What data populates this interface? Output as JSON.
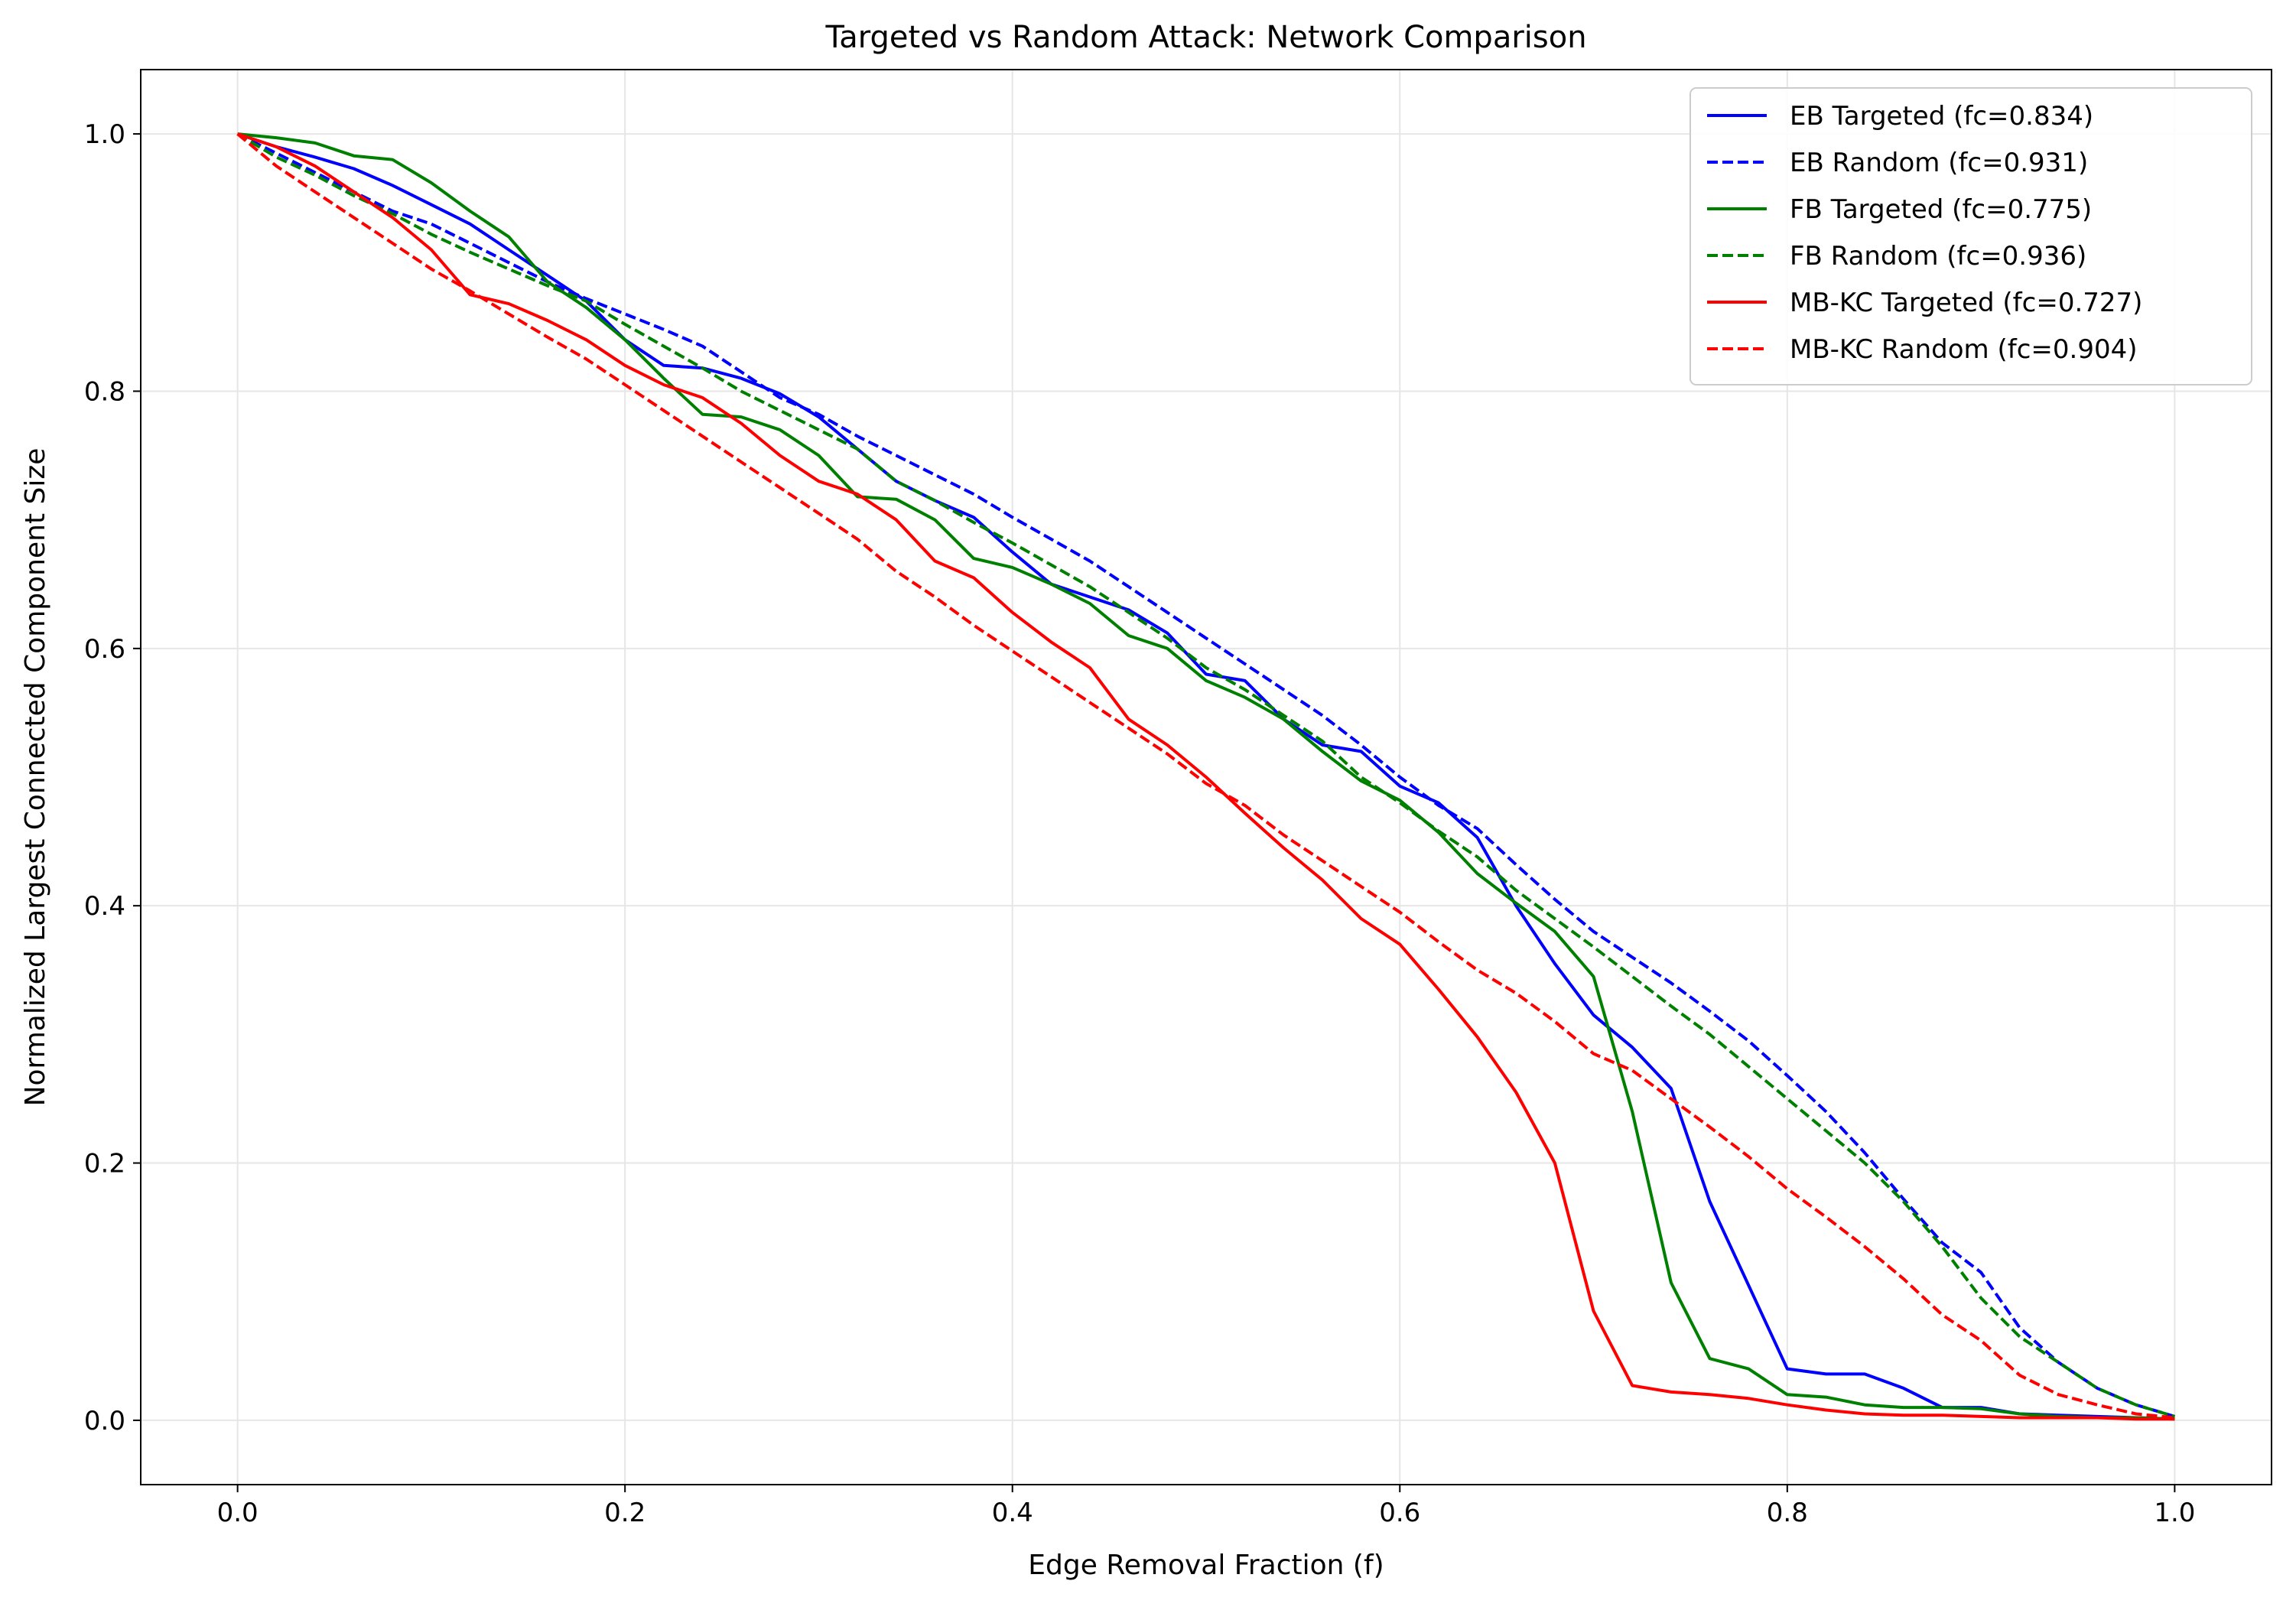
{
  "chart_data": {
    "type": "line",
    "title": "Targeted vs Random Attack: Network Comparison",
    "xlabel": "Edge Removal Fraction (f)",
    "ylabel": "Normalized Largest Connected Component Size",
    "xlim": [
      -0.05,
      1.05
    ],
    "ylim": [
      -0.05,
      1.05
    ],
    "xticks": [
      0.0,
      0.2,
      0.4,
      0.6,
      0.8,
      1.0
    ],
    "yticks": [
      0.0,
      0.2,
      0.4,
      0.6,
      0.8,
      1.0
    ],
    "xtick_labels": [
      "0.0",
      "0.2",
      "0.4",
      "0.6",
      "0.8",
      "1.0"
    ],
    "ytick_labels": [
      "0.0",
      "0.2",
      "0.4",
      "0.6",
      "0.8",
      "1.0"
    ],
    "grid": true,
    "legend_position": "top-right",
    "series": [
      {
        "name": "EB Targeted (fc=0.834)",
        "color": "#0000ff",
        "style": "solid",
        "x": [
          0.0,
          0.02,
          0.04,
          0.06,
          0.08,
          0.1,
          0.12,
          0.14,
          0.16,
          0.18,
          0.2,
          0.22,
          0.24,
          0.26,
          0.28,
          0.3,
          0.32,
          0.34,
          0.36,
          0.38,
          0.4,
          0.42,
          0.44,
          0.46,
          0.48,
          0.5,
          0.52,
          0.54,
          0.56,
          0.58,
          0.6,
          0.62,
          0.64,
          0.66,
          0.68,
          0.7,
          0.72,
          0.74,
          0.76,
          0.78,
          0.8,
          0.82,
          0.84,
          0.86,
          0.88,
          0.9,
          0.92,
          0.94,
          0.96,
          0.98,
          1.0
        ],
        "y": [
          1.0,
          0.99,
          0.982,
          0.973,
          0.96,
          0.945,
          0.93,
          0.91,
          0.89,
          0.87,
          0.84,
          0.82,
          0.818,
          0.81,
          0.798,
          0.78,
          0.755,
          0.73,
          0.715,
          0.702,
          0.675,
          0.65,
          0.64,
          0.63,
          0.612,
          0.58,
          0.575,
          0.545,
          0.525,
          0.52,
          0.493,
          0.48,
          0.453,
          0.4,
          0.355,
          0.315,
          0.29,
          0.258,
          0.17,
          0.105,
          0.04,
          0.036,
          0.036,
          0.025,
          0.01,
          0.01,
          0.005,
          0.004,
          0.003,
          0.002,
          0.001
        ]
      },
      {
        "name": "EB Random (fc=0.931)",
        "color": "#0000ff",
        "style": "dashed",
        "x": [
          0.0,
          0.02,
          0.04,
          0.06,
          0.08,
          0.1,
          0.12,
          0.14,
          0.16,
          0.18,
          0.2,
          0.22,
          0.24,
          0.26,
          0.28,
          0.3,
          0.32,
          0.34,
          0.36,
          0.38,
          0.4,
          0.42,
          0.44,
          0.46,
          0.48,
          0.5,
          0.52,
          0.54,
          0.56,
          0.58,
          0.6,
          0.62,
          0.64,
          0.66,
          0.68,
          0.7,
          0.72,
          0.74,
          0.76,
          0.78,
          0.8,
          0.82,
          0.84,
          0.86,
          0.88,
          0.9,
          0.92,
          0.94,
          0.96,
          0.98,
          1.0
        ],
        "y": [
          1.0,
          0.985,
          0.97,
          0.955,
          0.94,
          0.93,
          0.915,
          0.9,
          0.885,
          0.872,
          0.86,
          0.848,
          0.835,
          0.815,
          0.795,
          0.782,
          0.765,
          0.75,
          0.735,
          0.72,
          0.702,
          0.685,
          0.668,
          0.648,
          0.628,
          0.608,
          0.588,
          0.568,
          0.548,
          0.525,
          0.5,
          0.478,
          0.46,
          0.432,
          0.405,
          0.38,
          0.36,
          0.34,
          0.318,
          0.295,
          0.268,
          0.24,
          0.208,
          0.172,
          0.138,
          0.115,
          0.072,
          0.045,
          0.025,
          0.012,
          0.003
        ]
      },
      {
        "name": "FB Targeted (fc=0.775)",
        "color": "#008000",
        "style": "solid",
        "x": [
          0.0,
          0.02,
          0.04,
          0.06,
          0.08,
          0.1,
          0.12,
          0.14,
          0.16,
          0.18,
          0.2,
          0.22,
          0.24,
          0.26,
          0.28,
          0.3,
          0.32,
          0.34,
          0.36,
          0.38,
          0.4,
          0.42,
          0.44,
          0.46,
          0.48,
          0.5,
          0.52,
          0.54,
          0.56,
          0.58,
          0.6,
          0.62,
          0.64,
          0.66,
          0.68,
          0.7,
          0.72,
          0.74,
          0.76,
          0.78,
          0.8,
          0.82,
          0.84,
          0.86,
          0.88,
          0.9,
          0.92,
          0.94,
          0.96,
          0.98,
          1.0
        ],
        "y": [
          1.0,
          0.997,
          0.993,
          0.983,
          0.98,
          0.962,
          0.94,
          0.92,
          0.885,
          0.865,
          0.84,
          0.81,
          0.782,
          0.78,
          0.77,
          0.75,
          0.718,
          0.716,
          0.7,
          0.67,
          0.663,
          0.65,
          0.635,
          0.61,
          0.6,
          0.575,
          0.562,
          0.545,
          0.52,
          0.497,
          0.482,
          0.457,
          0.425,
          0.402,
          0.38,
          0.345,
          0.24,
          0.107,
          0.048,
          0.04,
          0.02,
          0.018,
          0.012,
          0.01,
          0.01,
          0.009,
          0.005,
          0.003,
          0.002,
          0.002,
          0.001
        ]
      },
      {
        "name": "FB Random (fc=0.936)",
        "color": "#008000",
        "style": "dashed",
        "x": [
          0.0,
          0.02,
          0.04,
          0.06,
          0.08,
          0.1,
          0.12,
          0.14,
          0.16,
          0.18,
          0.2,
          0.22,
          0.24,
          0.26,
          0.28,
          0.3,
          0.32,
          0.34,
          0.36,
          0.38,
          0.4,
          0.42,
          0.44,
          0.46,
          0.48,
          0.5,
          0.52,
          0.54,
          0.56,
          0.58,
          0.6,
          0.62,
          0.64,
          0.66,
          0.68,
          0.7,
          0.72,
          0.74,
          0.76,
          0.78,
          0.8,
          0.82,
          0.84,
          0.86,
          0.88,
          0.9,
          0.92,
          0.94,
          0.96,
          0.98,
          1.0
        ],
        "y": [
          1.0,
          0.982,
          0.968,
          0.952,
          0.938,
          0.922,
          0.908,
          0.895,
          0.882,
          0.87,
          0.852,
          0.835,
          0.818,
          0.8,
          0.785,
          0.77,
          0.755,
          0.73,
          0.715,
          0.698,
          0.682,
          0.665,
          0.648,
          0.628,
          0.608,
          0.585,
          0.568,
          0.548,
          0.528,
          0.5,
          0.48,
          0.458,
          0.438,
          0.412,
          0.39,
          0.368,
          0.345,
          0.322,
          0.3,
          0.275,
          0.25,
          0.225,
          0.2,
          0.17,
          0.135,
          0.095,
          0.065,
          0.045,
          0.025,
          0.012,
          0.003
        ]
      },
      {
        "name": "MB-KC Targeted (fc=0.727)",
        "color": "#ff0000",
        "style": "solid",
        "x": [
          0.0,
          0.02,
          0.04,
          0.06,
          0.08,
          0.1,
          0.12,
          0.14,
          0.16,
          0.18,
          0.2,
          0.22,
          0.24,
          0.26,
          0.28,
          0.3,
          0.32,
          0.34,
          0.36,
          0.38,
          0.4,
          0.42,
          0.44,
          0.46,
          0.48,
          0.5,
          0.52,
          0.54,
          0.56,
          0.58,
          0.6,
          0.62,
          0.64,
          0.66,
          0.68,
          0.7,
          0.72,
          0.74,
          0.76,
          0.78,
          0.8,
          0.82,
          0.84,
          0.86,
          0.88,
          0.9,
          0.92,
          0.94,
          0.96,
          0.98,
          1.0
        ],
        "y": [
          1.0,
          0.99,
          0.975,
          0.955,
          0.935,
          0.91,
          0.875,
          0.868,
          0.855,
          0.84,
          0.82,
          0.805,
          0.795,
          0.775,
          0.75,
          0.73,
          0.72,
          0.7,
          0.668,
          0.655,
          0.628,
          0.605,
          0.585,
          0.545,
          0.525,
          0.5,
          0.472,
          0.445,
          0.42,
          0.39,
          0.37,
          0.335,
          0.298,
          0.255,
          0.2,
          0.085,
          0.027,
          0.022,
          0.02,
          0.017,
          0.012,
          0.008,
          0.005,
          0.004,
          0.004,
          0.003,
          0.002,
          0.002,
          0.002,
          0.001,
          0.001
        ]
      },
      {
        "name": "MB-KC Random (fc=0.904)",
        "color": "#ff0000",
        "style": "dashed",
        "x": [
          0.0,
          0.02,
          0.04,
          0.06,
          0.08,
          0.1,
          0.12,
          0.14,
          0.16,
          0.18,
          0.2,
          0.22,
          0.24,
          0.26,
          0.28,
          0.3,
          0.32,
          0.34,
          0.36,
          0.38,
          0.4,
          0.42,
          0.44,
          0.46,
          0.48,
          0.5,
          0.52,
          0.54,
          0.56,
          0.58,
          0.6,
          0.62,
          0.64,
          0.66,
          0.68,
          0.7,
          0.72,
          0.74,
          0.76,
          0.78,
          0.8,
          0.82,
          0.84,
          0.86,
          0.88,
          0.9,
          0.92,
          0.94,
          0.96,
          0.98,
          1.0
        ],
        "y": [
          1.0,
          0.975,
          0.955,
          0.935,
          0.915,
          0.895,
          0.878,
          0.86,
          0.842,
          0.825,
          0.805,
          0.785,
          0.765,
          0.745,
          0.725,
          0.705,
          0.685,
          0.66,
          0.64,
          0.618,
          0.598,
          0.578,
          0.558,
          0.538,
          0.518,
          0.495,
          0.478,
          0.455,
          0.435,
          0.415,
          0.395,
          0.372,
          0.35,
          0.332,
          0.31,
          0.285,
          0.272,
          0.25,
          0.228,
          0.205,
          0.18,
          0.158,
          0.135,
          0.11,
          0.082,
          0.062,
          0.035,
          0.02,
          0.012,
          0.005,
          0.002
        ]
      }
    ]
  }
}
